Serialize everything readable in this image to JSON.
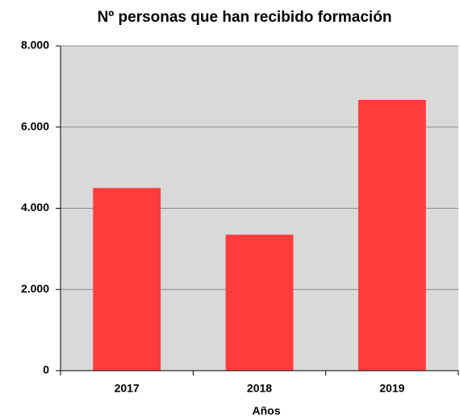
{
  "chart_data": {
    "type": "bar",
    "title": "Nº personas que han recibido formación",
    "xlabel": "Años",
    "categories": [
      "2017",
      "2018",
      "2019"
    ],
    "values": [
      4500,
      3350,
      6670
    ],
    "color": "#ff3b3b",
    "ylim": [
      0,
      8000
    ],
    "yticks": [
      0,
      {
        "value": 2000,
        "label": "2.000"
      },
      {
        "value": 4000,
        "label": "4.000"
      },
      {
        "value": 6000,
        "label": "6.000"
      },
      {
        "value": 8000,
        "label": "8.000"
      }
    ],
    "grid": true
  }
}
